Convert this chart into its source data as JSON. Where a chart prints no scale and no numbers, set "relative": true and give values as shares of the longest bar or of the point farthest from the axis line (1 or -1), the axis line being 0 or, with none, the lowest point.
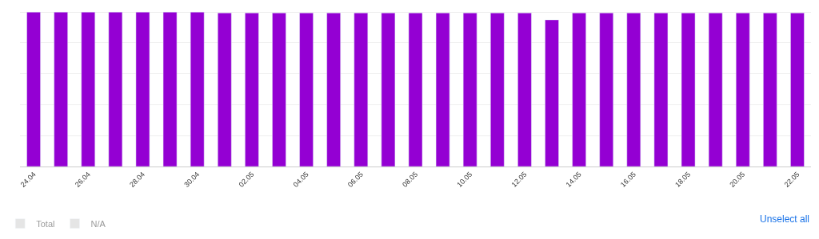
{
  "chart_data": {
    "type": "bar",
    "relative": true,
    "grid": "y",
    "legend": "bottom left",
    "categories": [
      "24.04",
      null,
      "26.04",
      null,
      "28.04",
      null,
      "30.04",
      null,
      "02.05",
      null,
      "04.05",
      null,
      "06.05",
      null,
      "08.05",
      null,
      "10.05",
      null,
      "12.05",
      null,
      "14.05",
      null,
      "16.05",
      null,
      "18.05",
      null,
      "20.05",
      null,
      "22.05"
    ],
    "series": [
      {
        "name": "Total",
        "color": "#cccccc",
        "values": [
          null,
          null,
          null,
          null,
          null,
          null,
          null,
          null,
          null,
          null,
          null,
          null,
          null,
          null,
          null,
          null,
          null,
          null,
          null,
          null,
          null,
          null,
          null,
          null,
          null,
          null,
          null,
          null,
          null
        ]
      },
      {
        "color": "#9400d3",
        "values": [
          1,
          1,
          1,
          1,
          1,
          1,
          1,
          0.995,
          0.995,
          0.995,
          0.995,
          0.995,
          0.995,
          0.995,
          0.995,
          0.995,
          0.995,
          0.995,
          0.995,
          0.95,
          0.995,
          0.995,
          0.995,
          0.995,
          0.995,
          0.995,
          0.995,
          0.995,
          0.995
        ]
      },
      {
        "name": "N/A",
        "color": "#cccccc",
        "values": [
          null,
          null,
          null,
          null,
          null,
          null,
          null,
          null,
          null,
          null,
          null,
          null,
          null,
          null,
          null,
          null,
          null,
          null,
          null,
          null,
          null,
          null,
          null,
          null,
          null,
          null,
          null,
          null,
          null
        ]
      }
    ],
    "annotations": [
      "Unselect all"
    ]
  }
}
